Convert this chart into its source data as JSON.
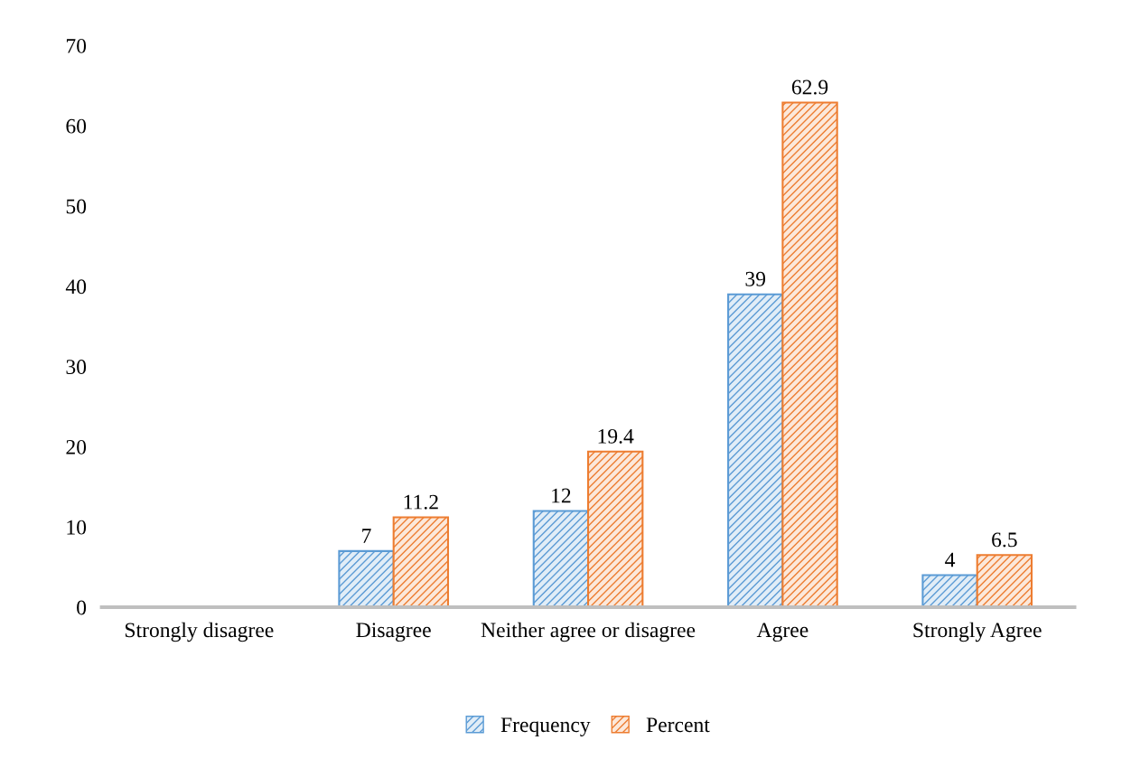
{
  "chart_data": {
    "type": "bar",
    "categories": [
      "Strongly disagree",
      "Disagree",
      "Neither agree or disagree",
      "Agree",
      "Strongly Agree"
    ],
    "series": [
      {
        "name": "Frequency",
        "color": "#5b9bd5",
        "values": [
          null,
          7,
          12,
          39,
          4
        ]
      },
      {
        "name": "Percent",
        "color": "#ed7d31",
        "values": [
          null,
          11.2,
          19.4,
          62.9,
          6.5
        ]
      }
    ],
    "ylim": [
      0,
      70
    ],
    "yticks": [
      0,
      10,
      20,
      30,
      40,
      50,
      60,
      70
    ],
    "data_labels": true,
    "grid": false,
    "legend": "bottom"
  }
}
